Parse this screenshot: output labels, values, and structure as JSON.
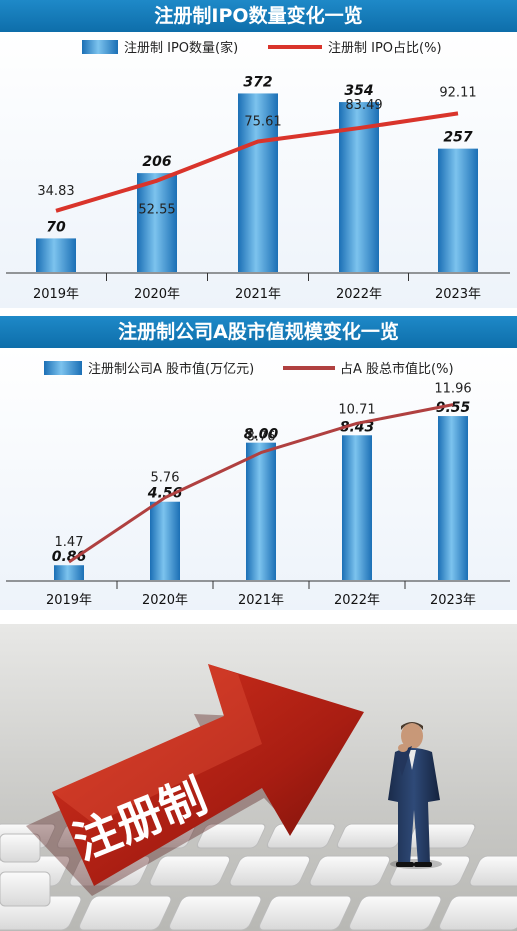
{
  "charts": [
    {
      "title": "注册制IPO数量变化一览",
      "legend_bar": "注册制 IPO数量(家)",
      "legend_line": "注册制 IPO占比(%)"
    },
    {
      "title": "注册制公司A股市值规模变化一览",
      "legend_bar": "注册制公司A 股市值(万亿元)",
      "legend_line": "占A 股总市值比(%)"
    }
  ],
  "chart_data": [
    {
      "type": "bar",
      "title": "注册制IPO数量变化一览",
      "categories": [
        "2019年",
        "2020年",
        "2021年",
        "2022年",
        "2023年"
      ],
      "series": [
        {
          "name": "注册制 IPO数量(家)",
          "type": "bar",
          "values": [
            70,
            206,
            372,
            354,
            257
          ],
          "value_labels": [
            "70",
            "206",
            "372",
            "354",
            "257"
          ]
        },
        {
          "name": "注册制 IPO占比(%)",
          "type": "line",
          "values": [
            34.83,
            52.55,
            75.61,
            83.49,
            92.11
          ],
          "value_labels": [
            "34.83",
            "52.55",
            "75.61",
            "83.49",
            "92.11"
          ]
        }
      ],
      "colors": {
        "bar": "#2f8fd0",
        "line": "#d9342b"
      }
    },
    {
      "type": "bar",
      "title": "注册制公司A股市值规模变化一览",
      "categories": [
        "2019年",
        "2020年",
        "2021年",
        "2022年",
        "2023年"
      ],
      "series": [
        {
          "name": "注册制公司A 股市值(万亿元)",
          "type": "bar",
          "values": [
            0.86,
            4.56,
            8.0,
            8.43,
            9.55
          ],
          "value_labels": [
            "0.86",
            "4.56",
            "8.00",
            "8.43",
            "9.55"
          ]
        },
        {
          "name": "占A 股总市值比(%)",
          "type": "line",
          "values": [
            1.47,
            5.76,
            8.76,
            10.71,
            11.96
          ],
          "value_labels": [
            "1.47",
            "5.76",
            "8.76",
            "10.71",
            "11.96"
          ]
        }
      ],
      "colors": {
        "bar": "#2f8fd0",
        "line": "#b04040"
      }
    }
  ],
  "image": {
    "arrow_text": "注册制"
  }
}
